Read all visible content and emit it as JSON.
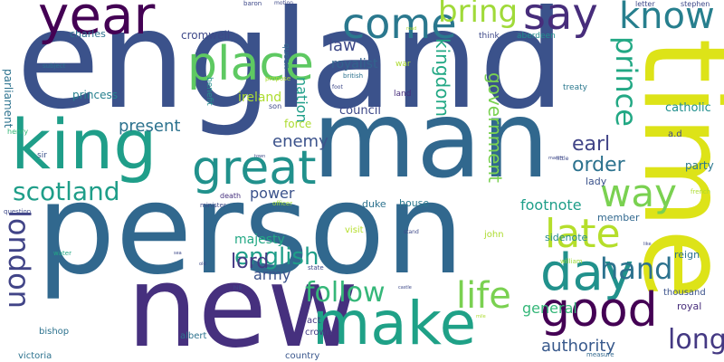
{
  "background": "#ffffff",
  "words": [
    {
      "text": "england",
      "color": "#3b528b",
      "rotated": false
    },
    {
      "text": "person",
      "color": "#31688e",
      "rotated": false
    },
    {
      "text": "man",
      "color": "#31688e",
      "rotated": false
    },
    {
      "text": "new",
      "color": "#46307e",
      "rotated": false
    },
    {
      "text": "time",
      "color": "#dde318",
      "rotated": true
    },
    {
      "text": "make",
      "color": "#1fa187",
      "rotated": false
    },
    {
      "text": "king",
      "color": "#1f9e89",
      "rotated": false
    },
    {
      "text": "great",
      "color": "#21918c",
      "rotated": false
    },
    {
      "text": "place",
      "color": "#5ec962",
      "rotated": false
    },
    {
      "text": "year",
      "color": "#440154",
      "rotated": false
    },
    {
      "text": "come",
      "color": "#2a788e",
      "rotated": false
    },
    {
      "text": "say",
      "color": "#472d7b",
      "rotated": false
    },
    {
      "text": "bring",
      "color": "#a0da39",
      "rotated": false
    },
    {
      "text": "know",
      "color": "#277f8e",
      "rotated": false
    },
    {
      "text": "day",
      "color": "#21918c",
      "rotated": false
    },
    {
      "text": "good",
      "color": "#440154",
      "rotated": false
    },
    {
      "text": "way",
      "color": "#7ad151",
      "rotated": false
    },
    {
      "text": "late",
      "color": "#b5de2b",
      "rotated": false
    },
    {
      "text": "hand",
      "color": "#2c728e",
      "rotated": false
    },
    {
      "text": "life",
      "color": "#7ad151",
      "rotated": false
    },
    {
      "text": "follow",
      "color": "#35b779",
      "rotated": false
    },
    {
      "text": "scotland",
      "color": "#1f9e89",
      "rotated": false
    },
    {
      "text": "london",
      "color": "#414487",
      "rotated": true
    },
    {
      "text": "long",
      "color": "#443983",
      "rotated": false
    },
    {
      "text": "english",
      "color": "#1f9e89",
      "rotated": false
    },
    {
      "text": "prince",
      "color": "#22a884",
      "rotated": true
    },
    {
      "text": "kingdom",
      "color": "#22a884",
      "rotated": true
    },
    {
      "text": "government",
      "color": "#7ad151",
      "rotated": true
    },
    {
      "text": "earl",
      "color": "#414487",
      "rotated": false
    },
    {
      "text": "order",
      "color": "#2c728e",
      "rotated": false
    },
    {
      "text": "lord",
      "color": "#443983",
      "rotated": false
    },
    {
      "text": "enemy",
      "color": "#3b528b",
      "rotated": false
    },
    {
      "text": "present",
      "color": "#2c728e",
      "rotated": false
    },
    {
      "text": "footnote",
      "color": "#1f9e89",
      "rotated": false
    },
    {
      "text": "authority",
      "color": "#38598c",
      "rotated": false
    },
    {
      "text": "general",
      "color": "#35b779",
      "rotated": false
    },
    {
      "text": "law",
      "color": "#3e4989",
      "rotated": false
    },
    {
      "text": "power",
      "color": "#3b528b",
      "rotated": false
    },
    {
      "text": "army",
      "color": "#3b528b",
      "rotated": false
    },
    {
      "text": "majesty",
      "color": "#22a884",
      "rotated": false
    },
    {
      "text": "nation",
      "color": "#1f9e89",
      "rotated": true
    },
    {
      "text": "ireland",
      "color": "#addc30",
      "rotated": false
    },
    {
      "text": "royalist",
      "color": "#33638d",
      "rotated": false
    },
    {
      "text": "council",
      "color": "#3e4989",
      "rotated": false
    },
    {
      "text": "catholic",
      "color": "#218f8d",
      "rotated": false
    },
    {
      "text": "charles",
      "color": "#2d708e",
      "rotated": false
    },
    {
      "text": "parliament",
      "color": "#2c728e",
      "rotated": true
    },
    {
      "text": "princess",
      "color": "#27808e",
      "rotated": false
    },
    {
      "text": "cromwell",
      "color": "#3e4989",
      "rotated": false
    },
    {
      "text": "force",
      "color": "#addc30",
      "rotated": false
    },
    {
      "text": "party",
      "color": "#2a788e",
      "rotated": false
    },
    {
      "text": "lady",
      "color": "#3b528b",
      "rotated": false
    },
    {
      "text": "duke",
      "color": "#2c728e",
      "rotated": false
    },
    {
      "text": "house",
      "color": "#2a788e",
      "rotated": false
    },
    {
      "text": "member",
      "color": "#31688e",
      "rotated": false
    },
    {
      "text": "sidenote",
      "color": "#238a8d",
      "rotated": false
    },
    {
      "text": "reign",
      "color": "#2c728e",
      "rotated": false
    },
    {
      "text": "royal",
      "color": "#472d7b",
      "rotated": false
    },
    {
      "text": "thousand",
      "color": "#3b528b",
      "rotated": false
    },
    {
      "text": "visit",
      "color": "#b5de2b",
      "rotated": false
    },
    {
      "text": "john",
      "color": "#addc30",
      "rotated": false
    },
    {
      "text": "crown",
      "color": "#433e85",
      "rotated": false
    },
    {
      "text": "act",
      "color": "#443a83",
      "rotated": false
    },
    {
      "text": "albert",
      "color": "#2c728e",
      "rotated": false
    },
    {
      "text": "country",
      "color": "#39568c",
      "rotated": false
    },
    {
      "text": "victoria",
      "color": "#2c728e",
      "rotated": false
    },
    {
      "text": "bishop",
      "color": "#2c728e",
      "rotated": false
    },
    {
      "text": "a.d",
      "color": "#3e4989",
      "rotated": false
    },
    {
      "text": "treaty",
      "color": "#2a788e",
      "rotated": false
    },
    {
      "text": "letter",
      "color": "#3e4989",
      "rotated": false
    },
    {
      "text": "stephen",
      "color": "#3e4989",
      "rotated": false
    },
    {
      "text": "aberdeen",
      "color": "#218f8d",
      "rotated": false
    },
    {
      "text": "think",
      "color": "#3e4989",
      "rotated": false
    },
    {
      "text": "queen",
      "color": "#31688e",
      "rotated": true
    },
    {
      "text": "war",
      "color": "#addc30",
      "rotated": false
    },
    {
      "text": "land",
      "color": "#472d7b",
      "rotated": false
    },
    {
      "text": "benefit",
      "color": "#21918c",
      "rotated": true
    },
    {
      "text": "son",
      "color": "#3e4989",
      "rotated": false
    },
    {
      "text": "sir",
      "color": "#3b528b",
      "rotated": false
    },
    {
      "text": "henry",
      "color": "#35b779",
      "rotated": false
    },
    {
      "text": "death",
      "color": "#46307e",
      "rotated": false
    },
    {
      "text": "minister",
      "color": "#3e4989",
      "rotated": false
    },
    {
      "text": "officer",
      "color": "#a0da39",
      "rotated": false
    },
    {
      "text": "state",
      "color": "#3e4989",
      "rotated": false
    },
    {
      "text": "william",
      "color": "#a0da39",
      "rotated": false
    },
    {
      "text": "measure",
      "color": "#31688e",
      "rotated": false
    },
    {
      "text": "question",
      "color": "#3e4989",
      "rotated": false
    },
    {
      "text": "water",
      "color": "#22a884",
      "rotated": false
    },
    {
      "text": "subject",
      "color": "#2c728e",
      "rotated": false
    },
    {
      "text": "motion",
      "color": "#3e4989",
      "rotated": false
    },
    {
      "text": "baron",
      "color": "#3e4989",
      "rotated": false
    },
    {
      "text": "british",
      "color": "#2c728e",
      "rotated": false
    },
    {
      "text": "foot",
      "color": "#3e4989",
      "rotated": false
    },
    {
      "text": "propose",
      "color": "#addc30",
      "rotated": false
    },
    {
      "text": "little",
      "color": "#3e4989",
      "rotated": false
    },
    {
      "text": "march",
      "color": "#3e4989",
      "rotated": false
    },
    {
      "text": "french",
      "color": "#addc30",
      "rotated": false
    },
    {
      "text": "castle",
      "color": "#3e4989",
      "rotated": false
    },
    {
      "text": "hill",
      "color": "#3e4989",
      "rotated": false
    },
    {
      "text": "mile",
      "color": "#addc30",
      "rotated": false
    },
    {
      "text": "stand",
      "color": "#3e4989",
      "rotated": false
    },
    {
      "text": "town",
      "color": "#3e4989",
      "rotated": false
    },
    {
      "text": "sea",
      "color": "#3e4989",
      "rotated": false
    },
    {
      "text": "old",
      "color": "#3e4989",
      "rotated": false
    },
    {
      "text": "like",
      "color": "#3e4989",
      "rotated": false
    },
    {
      "text": "road",
      "color": "#addc30",
      "rotated": false
    }
  ]
}
